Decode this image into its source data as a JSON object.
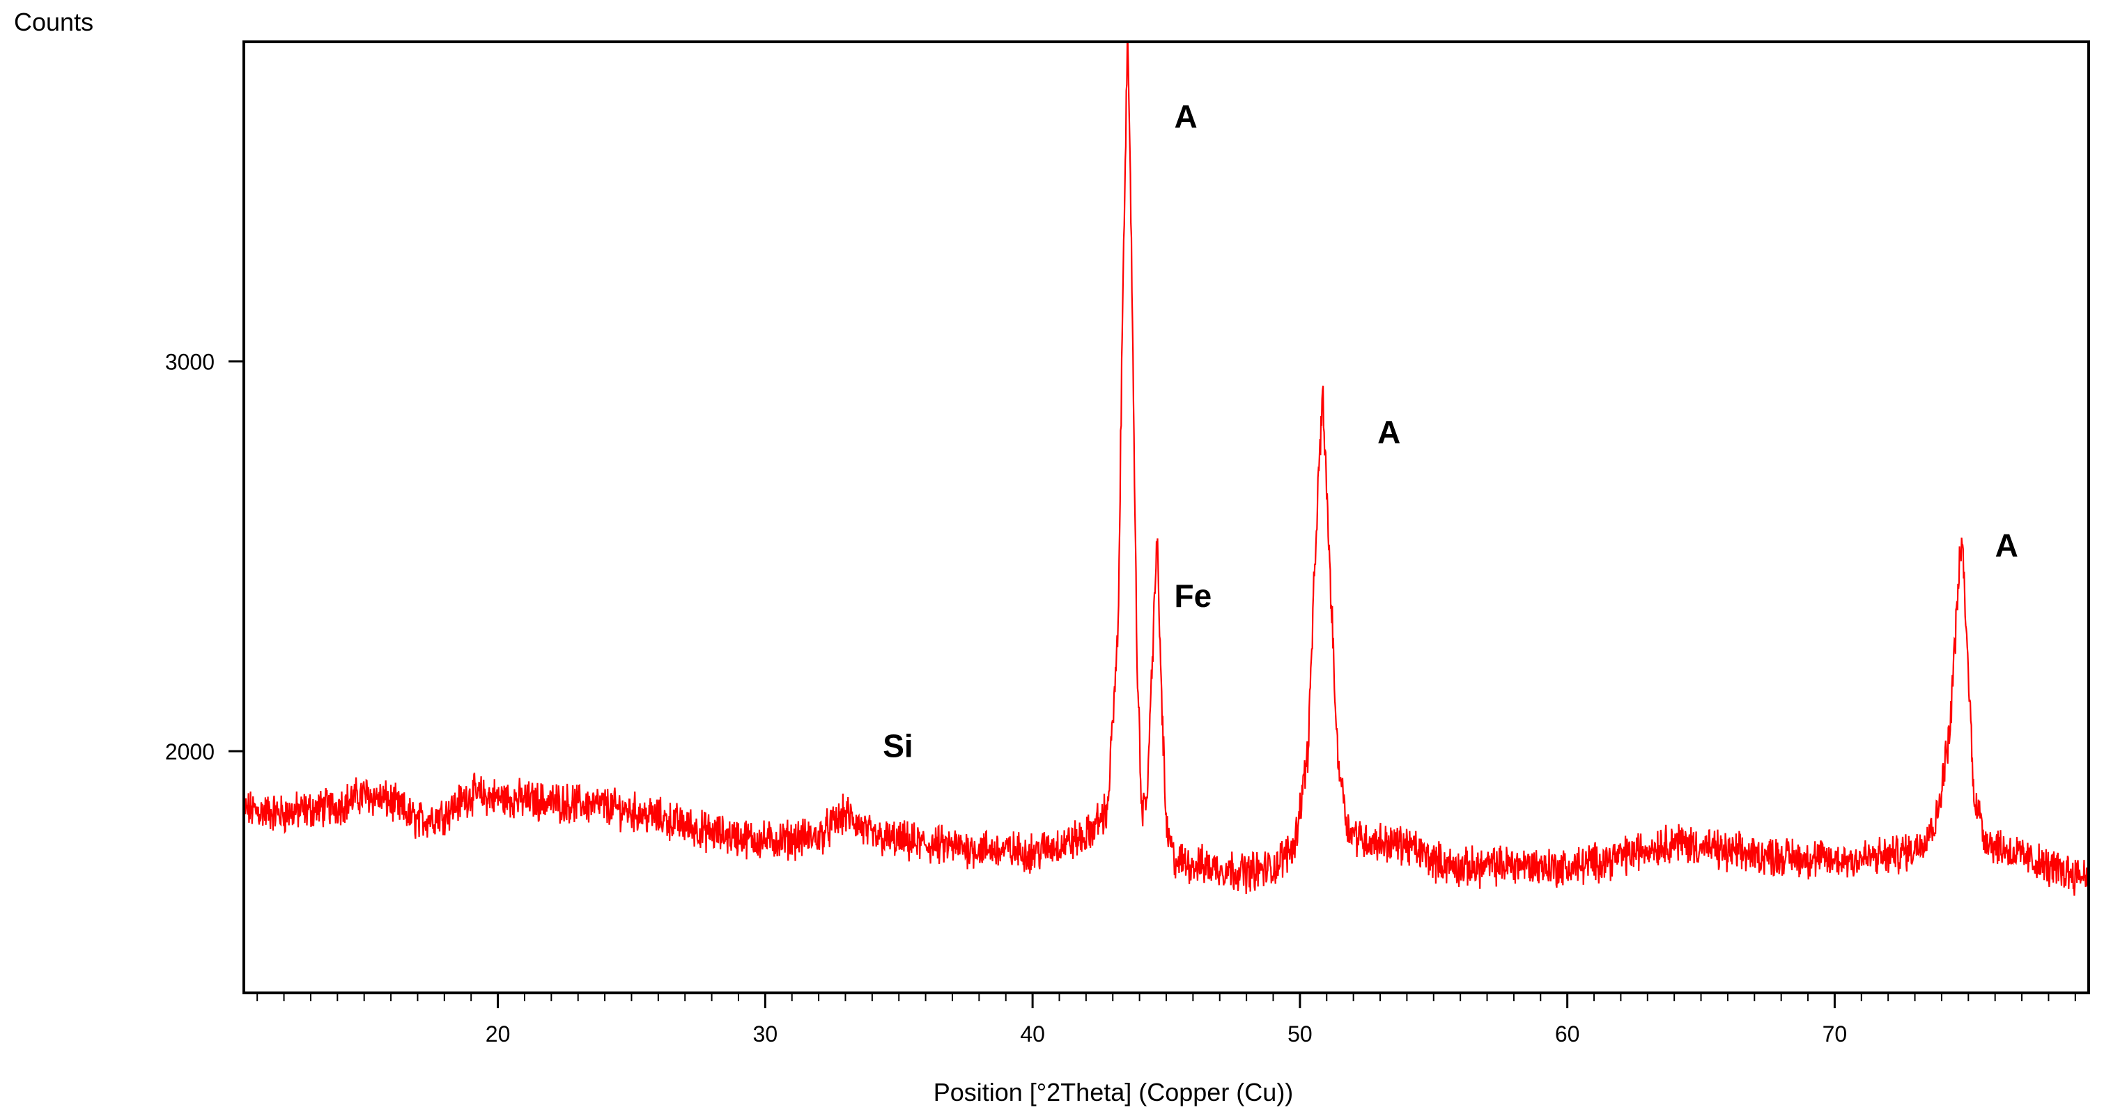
{
  "chart_data": {
    "type": "line",
    "title": "",
    "xlabel": "Position [°2Theta] (Copper (Cu))",
    "ylabel": "Counts",
    "xlim": [
      10.5,
      79.5
    ],
    "ylim": [
      1380,
      3820
    ],
    "x_ticks": [
      20,
      30,
      40,
      50,
      60,
      70
    ],
    "x_tick_labels": [
      "20",
      "30",
      "40",
      "50",
      "60",
      "70"
    ],
    "y_ticks": [
      2000,
      3000
    ],
    "y_tick_labels": [
      "2000",
      "3000"
    ],
    "grid": false,
    "legend": "none",
    "line_color": "#ff0000",
    "noise_amplitude": 40,
    "series": [
      {
        "x": [
          10.5,
          12,
          14,
          15,
          16,
          17,
          18,
          19,
          20,
          22,
          24,
          26,
          28,
          30,
          32,
          33,
          34,
          35,
          36,
          38,
          40,
          41,
          42,
          42.8,
          43.2,
          43.4,
          43.55,
          43.7,
          43.9,
          44.1,
          44.3,
          44.5,
          44.65,
          44.8,
          45.0,
          45.3,
          46,
          47,
          48,
          49,
          49.8,
          50.3,
          50.6,
          50.85,
          51.1,
          51.4,
          51.8,
          52.5,
          54,
          55,
          56,
          58,
          60,
          62,
          64,
          66,
          68,
          70,
          72,
          73,
          73.8,
          74.3,
          74.6,
          74.75,
          74.9,
          75.2,
          75.6,
          76,
          77,
          78,
          79.5
        ],
        "y": [
          1850,
          1840,
          1860,
          1890,
          1870,
          1820,
          1840,
          1890,
          1880,
          1870,
          1860,
          1830,
          1790,
          1770,
          1780,
          1840,
          1780,
          1770,
          1760,
          1750,
          1740,
          1760,
          1780,
          1850,
          2300,
          3300,
          3820,
          3300,
          2250,
          1830,
          1900,
          2280,
          2550,
          2200,
          1800,
          1720,
          1710,
          1700,
          1690,
          1700,
          1760,
          2000,
          2550,
          2920,
          2500,
          2000,
          1800,
          1770,
          1760,
          1720,
          1700,
          1710,
          1700,
          1730,
          1770,
          1740,
          1730,
          1720,
          1730,
          1750,
          1820,
          2050,
          2400,
          2550,
          2350,
          1900,
          1780,
          1760,
          1730,
          1700,
          1680
        ]
      }
    ],
    "annotations": [
      {
        "text": "A",
        "x": 45.3,
        "y": 3600
      },
      {
        "text": "Fe",
        "x": 45.3,
        "y": 2370
      },
      {
        "text": "A",
        "x": 52.9,
        "y": 2790
      },
      {
        "text": "A",
        "x": 76.0,
        "y": 2500
      },
      {
        "text": "Si",
        "x": 34.4,
        "y": 1985
      }
    ]
  }
}
